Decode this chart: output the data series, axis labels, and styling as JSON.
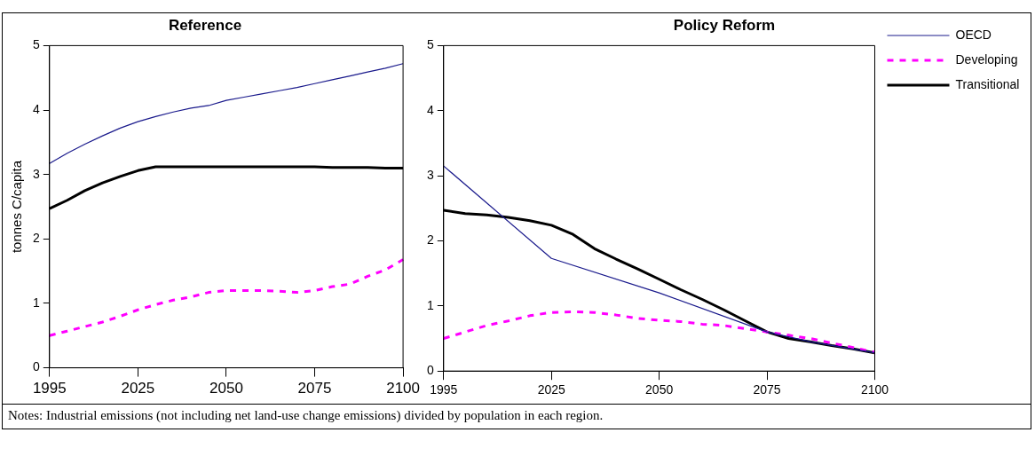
{
  "chart_data": [
    {
      "type": "line",
      "title": "Reference",
      "ylabel": "tonnes C/capita",
      "categories": [
        "1995",
        null,
        null,
        null,
        null,
        "2025",
        null,
        null,
        null,
        null,
        "2050",
        null,
        null,
        null,
        null,
        "2075",
        null,
        null,
        null,
        null,
        "2100"
      ],
      "ylim": [
        0,
        5
      ],
      "yticks": [
        0,
        1,
        2,
        3,
        4,
        5
      ],
      "grid": false,
      "legend": false,
      "series": [
        {
          "color": "#1a1a8c",
          "line_style": "solid",
          "values": [
            3.17,
            3.33,
            3.47,
            3.6,
            3.72,
            3.82,
            3.9,
            3.97,
            4.03,
            4.07,
            4.15,
            4.2,
            4.25,
            4.3,
            4.35,
            4.41,
            4.47,
            4.53,
            4.59,
            4.65,
            4.72
          ]
        },
        {
          "color": "#ff00ff",
          "line_style": "dashed",
          "values": [
            0.5,
            0.57,
            0.64,
            0.71,
            0.8,
            0.9,
            0.98,
            1.05,
            1.1,
            1.17,
            1.2,
            1.2,
            1.2,
            1.19,
            1.17,
            1.2,
            1.26,
            1.3,
            1.42,
            1.52,
            1.68
          ]
        },
        {
          "color": "#000000",
          "line_style": "solid",
          "values": [
            2.47,
            2.6,
            2.75,
            2.87,
            2.97,
            3.06,
            3.12,
            3.12,
            3.12,
            3.12,
            3.12,
            3.12,
            3.12,
            3.12,
            3.12,
            3.12,
            3.11,
            3.11,
            3.11,
            3.1,
            3.1
          ]
        }
      ],
      "annotations": [
        "Notes: Industrial emissions (not including net land-use change emissions) divided by population in each region."
      ]
    },
    {
      "type": "line",
      "title": "Policy Reform",
      "categories": [
        "1995",
        null,
        null,
        null,
        null,
        "2025",
        null,
        null,
        null,
        null,
        "2050",
        null,
        null,
        null,
        null,
        "2075",
        null,
        null,
        null,
        null,
        "2100"
      ],
      "ylim": [
        0,
        5
      ],
      "yticks": [
        0,
        1,
        2,
        3,
        4,
        5
      ],
      "grid": false,
      "legend": "right",
      "series": [
        {
          "name": "OECD",
          "color": "#1a1a8c",
          "line_style": "solid",
          "values": [
            3.15,
            null,
            null,
            null,
            null,
            1.73,
            null,
            null,
            null,
            null,
            1.2,
            null,
            null,
            null,
            null,
            0.6,
            null,
            0.45,
            null,
            null,
            0.28
          ]
        },
        {
          "name": "Developing",
          "color": "#ff00ff",
          "line_style": "dashed",
          "values": [
            0.5,
            0.6,
            0.7,
            0.77,
            0.85,
            0.9,
            0.91,
            0.9,
            0.86,
            0.81,
            0.78,
            0.76,
            0.72,
            0.7,
            0.65,
            0.6,
            0.55,
            0.5,
            0.43,
            0.36,
            0.29
          ]
        },
        {
          "name": "Transitional",
          "color": "#000000",
          "line_style": "solid",
          "values": [
            2.47,
            2.42,
            2.4,
            2.36,
            2.31,
            2.24,
            2.1,
            1.88,
            1.72,
            1.57,
            1.41,
            1.25,
            1.1,
            0.94,
            0.77,
            0.6,
            0.5,
            0.45,
            0.39,
            0.34,
            0.28
          ]
        }
      ]
    }
  ]
}
